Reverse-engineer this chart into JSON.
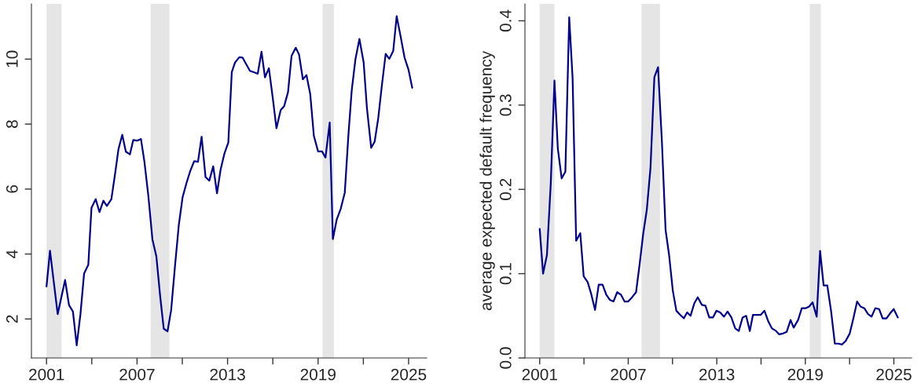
{
  "chart_data": [
    {
      "type": "line",
      "x": [
        2001.0,
        2001.23,
        2001.74,
        2002.23,
        2002.49,
        2002.75,
        2003.0,
        2003.25,
        2003.49,
        2003.77,
        2003.98,
        2004.26,
        2004.51,
        2004.77,
        2005.0,
        2005.3,
        2005.56,
        2005.77,
        2006.02,
        2006.26,
        2006.53,
        2006.75,
        2007.0,
        2007.26,
        2007.49,
        2007.75,
        2008.02,
        2008.28,
        2008.53,
        2008.77,
        2009.02,
        2009.26,
        2009.51,
        2009.77,
        2010.02,
        2010.28,
        2010.53,
        2010.79,
        2011.04,
        2011.28,
        2011.54,
        2011.79,
        2012.05,
        2012.3,
        2012.54,
        2012.79,
        2013.05,
        2013.28,
        2013.5,
        2013.78,
        2013.99,
        2014.48,
        2014.78,
        2015.0,
        2015.25,
        2015.48,
        2015.74,
        2016.0,
        2016.24,
        2016.52,
        2016.75,
        2017.01,
        2017.24,
        2017.52,
        2017.74,
        2017.99,
        2018.23,
        2018.48,
        2018.72,
        2019.0,
        2019.26,
        2019.49,
        2019.77,
        2019.98,
        2020.24,
        2020.5,
        2020.77,
        2021.01,
        2021.23,
        2021.48,
        2021.74,
        2022.02,
        2022.24,
        2022.52,
        2022.75,
        2022.99,
        2023.22,
        2023.48,
        2023.72,
        2023.98,
        2024.21,
        2024.47,
        2024.73,
        2024.99,
        2025.24
      ],
      "series": [
        {
          "color": "#00008b",
          "values": [
            3.0,
            4.1,
            2.15,
            3.2,
            2.43,
            2.23,
            1.19,
            2.15,
            3.4,
            3.67,
            5.42,
            5.69,
            5.29,
            5.64,
            5.48,
            5.69,
            6.52,
            7.23,
            7.67,
            7.15,
            7.07,
            7.51,
            7.49,
            7.54,
            6.84,
            5.79,
            4.45,
            3.93,
            2.71,
            1.7,
            1.62,
            2.27,
            3.6,
            4.9,
            5.75,
            6.19,
            6.56,
            6.86,
            6.84,
            7.61,
            6.37,
            6.26,
            6.7,
            5.87,
            6.6,
            7.09,
            7.43,
            9.6,
            9.9,
            10.06,
            10.05,
            9.64,
            9.59,
            9.55,
            10.23,
            9.44,
            9.72,
            8.79,
            7.87,
            8.43,
            8.55,
            8.99,
            10.1,
            10.35,
            10.14,
            9.38,
            9.51,
            8.92,
            7.64,
            7.16,
            7.16,
            6.97,
            8.05,
            4.46,
            5.07,
            5.39,
            5.89,
            7.66,
            9.04,
            10.01,
            10.62,
            9.9,
            8.48,
            7.27,
            7.46,
            8.19,
            9.16,
            10.16,
            10.01,
            10.25,
            11.32,
            10.7,
            10.05,
            9.68,
            9.12
          ]
        }
      ],
      "xlim": [
        2000.0,
        2026.2
      ],
      "ylim": [
        0.8,
        11.7
      ],
      "xticks": [
        2001,
        {
          "value": 2004,
          "label": null
        },
        2007,
        {
          "value": 2010,
          "label": null
        },
        2013,
        {
          "value": 2016,
          "label": null
        },
        2019,
        {
          "value": 2022,
          "label": null
        },
        2025
      ],
      "yticks": [
        2,
        4,
        6,
        8,
        10
      ],
      "bands": [
        {
          "axis": "x",
          "from": 2001.0,
          "to": 2002.0,
          "color": "#e5e5e5"
        },
        {
          "axis": "x",
          "from": 2007.9,
          "to": 2009.15,
          "color": "#e5e5e5"
        },
        {
          "axis": "x",
          "from": 2019.3,
          "to": 2020.05,
          "color": "#e5e5e5"
        }
      ],
      "grid": false,
      "line_style": "solid"
    },
    {
      "type": "line",
      "ylabel": "average expected default frequency",
      "x": [
        2001.0,
        2001.23,
        2001.49,
        2001.75,
        2002.0,
        2002.23,
        2002.49,
        2002.74,
        2003.0,
        2003.23,
        2003.47,
        2003.75,
        2003.98,
        2004.25,
        2004.49,
        2004.75,
        2005.0,
        2005.26,
        2005.51,
        2005.75,
        2006.0,
        2006.25,
        2006.51,
        2006.75,
        2007.0,
        2007.26,
        2007.53,
        2007.77,
        2008.02,
        2008.26,
        2008.51,
        2008.77,
        2009.02,
        2009.28,
        2009.53,
        2009.77,
        2010.02,
        2010.26,
        2010.53,
        2010.77,
        2010.99,
        2011.22,
        2011.48,
        2011.71,
        2011.99,
        2012.23,
        2012.49,
        2012.74,
        2012.98,
        2013.23,
        2013.49,
        2013.73,
        2013.99,
        2014.25,
        2014.49,
        2014.75,
        2014.99,
        2015.24,
        2015.45,
        2015.71,
        2015.97,
        2016.23,
        2016.5,
        2016.74,
        2017.02,
        2017.23,
        2017.49,
        2017.74,
        2018.0,
        2018.21,
        2018.51,
        2018.76,
        2019.02,
        2019.26,
        2019.49,
        2019.77,
        2020.0,
        2020.24,
        2020.49,
        2020.75,
        2021.0,
        2021.24,
        2021.48,
        2021.73,
        2022.01,
        2022.27,
        2022.51,
        2022.74,
        2023.0,
        2023.25,
        2023.49,
        2023.74,
        2024.0,
        2024.24,
        2024.5,
        2024.75,
        2024.99,
        2025.27
      ],
      "series": [
        {
          "color": "#00008b",
          "values": [
            0.153,
            0.1,
            0.122,
            0.207,
            0.329,
            0.248,
            0.213,
            0.221,
            0.404,
            0.332,
            0.139,
            0.148,
            0.097,
            0.09,
            0.076,
            0.057,
            0.087,
            0.087,
            0.075,
            0.069,
            0.067,
            0.078,
            0.075,
            0.067,
            0.067,
            0.072,
            0.078,
            0.111,
            0.148,
            0.176,
            0.226,
            0.333,
            0.345,
            0.257,
            0.152,
            0.122,
            0.08,
            0.056,
            0.051,
            0.047,
            0.054,
            0.05,
            0.065,
            0.072,
            0.063,
            0.062,
            0.048,
            0.048,
            0.056,
            0.054,
            0.049,
            0.055,
            0.048,
            0.035,
            0.032,
            0.048,
            0.05,
            0.032,
            0.051,
            0.051,
            0.051,
            0.056,
            0.043,
            0.035,
            0.032,
            0.028,
            0.029,
            0.031,
            0.045,
            0.036,
            0.045,
            0.059,
            0.059,
            0.061,
            0.066,
            0.049,
            0.127,
            0.086,
            0.086,
            0.055,
            0.017,
            0.017,
            0.016,
            0.02,
            0.029,
            0.048,
            0.067,
            0.061,
            0.059,
            0.052,
            0.049,
            0.059,
            0.058,
            0.047,
            0.047,
            0.053,
            0.058,
            0.048
          ]
        }
      ],
      "xlim": [
        2000.0,
        2026.2
      ],
      "ylim": [
        0.0,
        0.42
      ],
      "xticks": [
        2001,
        {
          "value": 2004,
          "label": null
        },
        2007,
        {
          "value": 2010,
          "label": null
        },
        2013,
        {
          "value": 2016,
          "label": null
        },
        2019,
        {
          "value": 2022,
          "label": null
        },
        2025
      ],
      "yticks": [
        {
          "value": 0.0,
          "label": "0.0"
        },
        0.1,
        0.2,
        0.3,
        0.4
      ],
      "bands": [
        {
          "axis": "x",
          "from": 2001.0,
          "to": 2002.0,
          "color": "#e5e5e5"
        },
        {
          "axis": "x",
          "from": 2007.9,
          "to": 2009.15,
          "color": "#e5e5e5"
        },
        {
          "axis": "x",
          "from": 2019.3,
          "to": 2020.05,
          "color": "#e5e5e5"
        }
      ],
      "grid": false,
      "line_style": "solid"
    }
  ]
}
